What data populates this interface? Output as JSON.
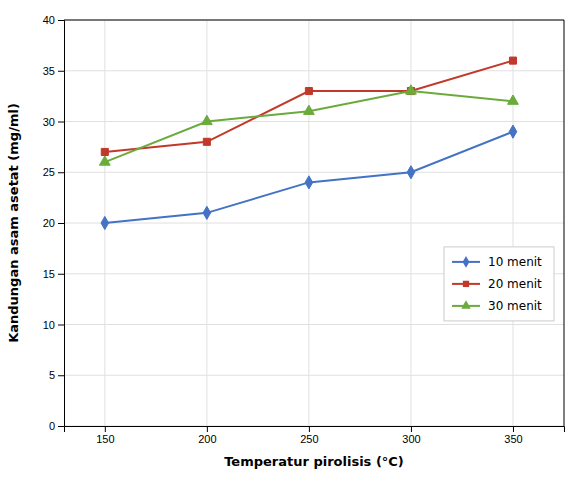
{
  "chart_data": {
    "type": "line",
    "x": [
      150,
      200,
      250,
      300,
      350
    ],
    "series": [
      {
        "name": "10 menit",
        "values": [
          20,
          21,
          24,
          25,
          29
        ],
        "color": "#4472C4",
        "marker": "diamond"
      },
      {
        "name": "20 menit",
        "values": [
          27,
          28,
          33,
          33,
          36
        ],
        "color": "#C0392B",
        "marker": "square"
      },
      {
        "name": "30 menit",
        "values": [
          26,
          30,
          31,
          33,
          32
        ],
        "color": "#6AAB3C",
        "marker": "triangle"
      }
    ],
    "xlabel": "Temperatur pirolisis (°C)",
    "ylabel": "Kandungan asam asetat (mg/ml)",
    "xlim": [
      130,
      375
    ],
    "xticks": [
      150,
      200,
      250,
      300,
      350
    ],
    "ylim": [
      0,
      40
    ],
    "yticks": [
      0,
      5,
      10,
      15,
      20,
      25,
      30,
      35,
      40
    ],
    "grid": true,
    "legend": "right"
  }
}
